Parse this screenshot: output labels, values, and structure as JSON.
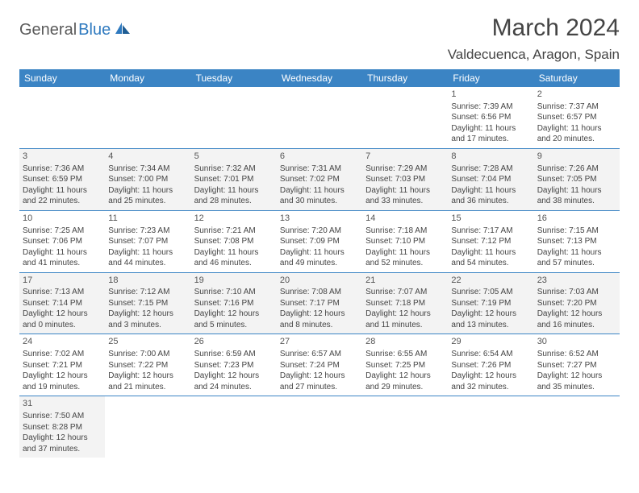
{
  "logo": {
    "part1": "General",
    "part2": "Blue"
  },
  "title": "March 2024",
  "location": "Valdecuenca, Aragon, Spain",
  "colors": {
    "header_bg": "#3b84c4",
    "header_text": "#ffffff",
    "row_alt_bg": "#f3f3f3",
    "border": "#3b84c4",
    "text": "#444444",
    "logo_dark": "#5a5a5a",
    "logo_blue": "#2f7abf"
  },
  "daysOfWeek": [
    "Sunday",
    "Monday",
    "Tuesday",
    "Wednesday",
    "Thursday",
    "Friday",
    "Saturday"
  ],
  "weeks": [
    [
      null,
      null,
      null,
      null,
      null,
      {
        "n": "1",
        "sr": "Sunrise: 7:39 AM",
        "ss": "Sunset: 6:56 PM",
        "d1": "Daylight: 11 hours",
        "d2": "and 17 minutes."
      },
      {
        "n": "2",
        "sr": "Sunrise: 7:37 AM",
        "ss": "Sunset: 6:57 PM",
        "d1": "Daylight: 11 hours",
        "d2": "and 20 minutes."
      }
    ],
    [
      {
        "n": "3",
        "sr": "Sunrise: 7:36 AM",
        "ss": "Sunset: 6:59 PM",
        "d1": "Daylight: 11 hours",
        "d2": "and 22 minutes."
      },
      {
        "n": "4",
        "sr": "Sunrise: 7:34 AM",
        "ss": "Sunset: 7:00 PM",
        "d1": "Daylight: 11 hours",
        "d2": "and 25 minutes."
      },
      {
        "n": "5",
        "sr": "Sunrise: 7:32 AM",
        "ss": "Sunset: 7:01 PM",
        "d1": "Daylight: 11 hours",
        "d2": "and 28 minutes."
      },
      {
        "n": "6",
        "sr": "Sunrise: 7:31 AM",
        "ss": "Sunset: 7:02 PM",
        "d1": "Daylight: 11 hours",
        "d2": "and 30 minutes."
      },
      {
        "n": "7",
        "sr": "Sunrise: 7:29 AM",
        "ss": "Sunset: 7:03 PM",
        "d1": "Daylight: 11 hours",
        "d2": "and 33 minutes."
      },
      {
        "n": "8",
        "sr": "Sunrise: 7:28 AM",
        "ss": "Sunset: 7:04 PM",
        "d1": "Daylight: 11 hours",
        "d2": "and 36 minutes."
      },
      {
        "n": "9",
        "sr": "Sunrise: 7:26 AM",
        "ss": "Sunset: 7:05 PM",
        "d1": "Daylight: 11 hours",
        "d2": "and 38 minutes."
      }
    ],
    [
      {
        "n": "10",
        "sr": "Sunrise: 7:25 AM",
        "ss": "Sunset: 7:06 PM",
        "d1": "Daylight: 11 hours",
        "d2": "and 41 minutes."
      },
      {
        "n": "11",
        "sr": "Sunrise: 7:23 AM",
        "ss": "Sunset: 7:07 PM",
        "d1": "Daylight: 11 hours",
        "d2": "and 44 minutes."
      },
      {
        "n": "12",
        "sr": "Sunrise: 7:21 AM",
        "ss": "Sunset: 7:08 PM",
        "d1": "Daylight: 11 hours",
        "d2": "and 46 minutes."
      },
      {
        "n": "13",
        "sr": "Sunrise: 7:20 AM",
        "ss": "Sunset: 7:09 PM",
        "d1": "Daylight: 11 hours",
        "d2": "and 49 minutes."
      },
      {
        "n": "14",
        "sr": "Sunrise: 7:18 AM",
        "ss": "Sunset: 7:10 PM",
        "d1": "Daylight: 11 hours",
        "d2": "and 52 minutes."
      },
      {
        "n": "15",
        "sr": "Sunrise: 7:17 AM",
        "ss": "Sunset: 7:12 PM",
        "d1": "Daylight: 11 hours",
        "d2": "and 54 minutes."
      },
      {
        "n": "16",
        "sr": "Sunrise: 7:15 AM",
        "ss": "Sunset: 7:13 PM",
        "d1": "Daylight: 11 hours",
        "d2": "and 57 minutes."
      }
    ],
    [
      {
        "n": "17",
        "sr": "Sunrise: 7:13 AM",
        "ss": "Sunset: 7:14 PM",
        "d1": "Daylight: 12 hours",
        "d2": "and 0 minutes."
      },
      {
        "n": "18",
        "sr": "Sunrise: 7:12 AM",
        "ss": "Sunset: 7:15 PM",
        "d1": "Daylight: 12 hours",
        "d2": "and 3 minutes."
      },
      {
        "n": "19",
        "sr": "Sunrise: 7:10 AM",
        "ss": "Sunset: 7:16 PM",
        "d1": "Daylight: 12 hours",
        "d2": "and 5 minutes."
      },
      {
        "n": "20",
        "sr": "Sunrise: 7:08 AM",
        "ss": "Sunset: 7:17 PM",
        "d1": "Daylight: 12 hours",
        "d2": "and 8 minutes."
      },
      {
        "n": "21",
        "sr": "Sunrise: 7:07 AM",
        "ss": "Sunset: 7:18 PM",
        "d1": "Daylight: 12 hours",
        "d2": "and 11 minutes."
      },
      {
        "n": "22",
        "sr": "Sunrise: 7:05 AM",
        "ss": "Sunset: 7:19 PM",
        "d1": "Daylight: 12 hours",
        "d2": "and 13 minutes."
      },
      {
        "n": "23",
        "sr": "Sunrise: 7:03 AM",
        "ss": "Sunset: 7:20 PM",
        "d1": "Daylight: 12 hours",
        "d2": "and 16 minutes."
      }
    ],
    [
      {
        "n": "24",
        "sr": "Sunrise: 7:02 AM",
        "ss": "Sunset: 7:21 PM",
        "d1": "Daylight: 12 hours",
        "d2": "and 19 minutes."
      },
      {
        "n": "25",
        "sr": "Sunrise: 7:00 AM",
        "ss": "Sunset: 7:22 PM",
        "d1": "Daylight: 12 hours",
        "d2": "and 21 minutes."
      },
      {
        "n": "26",
        "sr": "Sunrise: 6:59 AM",
        "ss": "Sunset: 7:23 PM",
        "d1": "Daylight: 12 hours",
        "d2": "and 24 minutes."
      },
      {
        "n": "27",
        "sr": "Sunrise: 6:57 AM",
        "ss": "Sunset: 7:24 PM",
        "d1": "Daylight: 12 hours",
        "d2": "and 27 minutes."
      },
      {
        "n": "28",
        "sr": "Sunrise: 6:55 AM",
        "ss": "Sunset: 7:25 PM",
        "d1": "Daylight: 12 hours",
        "d2": "and 29 minutes."
      },
      {
        "n": "29",
        "sr": "Sunrise: 6:54 AM",
        "ss": "Sunset: 7:26 PM",
        "d1": "Daylight: 12 hours",
        "d2": "and 32 minutes."
      },
      {
        "n": "30",
        "sr": "Sunrise: 6:52 AM",
        "ss": "Sunset: 7:27 PM",
        "d1": "Daylight: 12 hours",
        "d2": "and 35 minutes."
      }
    ],
    [
      {
        "n": "31",
        "sr": "Sunrise: 7:50 AM",
        "ss": "Sunset: 8:28 PM",
        "d1": "Daylight: 12 hours",
        "d2": "and 37 minutes."
      },
      null,
      null,
      null,
      null,
      null,
      null
    ]
  ]
}
